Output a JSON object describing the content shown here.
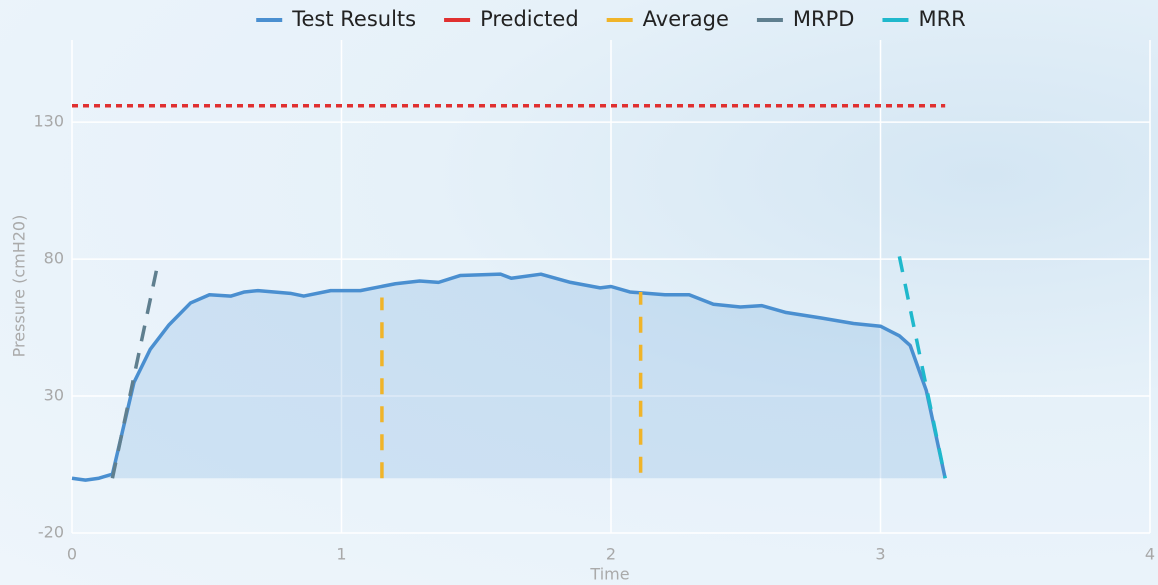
{
  "chart_data": {
    "type": "line",
    "x_label": "Time",
    "y_label": "Pressure (cmH20)",
    "xlim": [
      0,
      4
    ],
    "xticks": [
      0,
      1,
      2,
      3,
      4
    ],
    "ylim": [
      -20,
      160
    ],
    "yticks": [
      -20,
      30,
      80,
      130
    ],
    "grid": true,
    "legend_position": "top",
    "series": [
      {
        "name": "Test Results",
        "color": "#4a8fd0",
        "dash": "solid",
        "fill": true,
        "x": [
          0,
          0.05,
          0.1,
          0.15,
          0.23,
          0.29,
          0.36,
          0.44,
          0.51,
          0.59,
          0.64,
          0.69,
          0.81,
          0.86,
          0.96,
          1.07,
          1.2,
          1.29,
          1.36,
          1.44,
          1.59,
          1.63,
          1.74,
          1.85,
          1.96,
          2.0,
          2.07,
          2.2,
          2.29,
          2.38,
          2.48,
          2.56,
          2.65,
          2.78,
          2.9,
          3.0,
          3.07,
          3.11,
          3.17,
          3.24
        ],
        "values": [
          0,
          -0.7,
          0,
          1.5,
          35,
          47,
          56,
          64,
          67,
          66.5,
          68,
          68.5,
          67.5,
          66.5,
          68.5,
          68.5,
          71,
          72,
          71.5,
          74,
          74.5,
          73,
          74.5,
          71.5,
          69.5,
          70,
          68,
          67,
          67,
          63.5,
          62.5,
          63,
          60.5,
          58.5,
          56.5,
          55.5,
          52,
          48.5,
          32,
          0
        ]
      },
      {
        "name": "Predicted",
        "color": "#e03030",
        "dash": "dotted",
        "x": [
          0,
          3.24
        ],
        "values": [
          136,
          136
        ]
      },
      {
        "name": "Average",
        "color": "#f0b429",
        "dash": "dashed",
        "x": [
          1.15,
          1.15,
          null,
          2.11,
          2.11
        ],
        "values": [
          0,
          66,
          null,
          2,
          68
        ]
      },
      {
        "name": "MRPD",
        "color": "#5f7f8f",
        "dash": "dashed",
        "x": [
          0.15,
          0.32
        ],
        "values": [
          0,
          79
        ]
      },
      {
        "name": "MRR",
        "color": "#1fb8cc",
        "dash": "dashed",
        "x": [
          3.07,
          3.24
        ],
        "values": [
          81,
          0
        ]
      }
    ]
  }
}
